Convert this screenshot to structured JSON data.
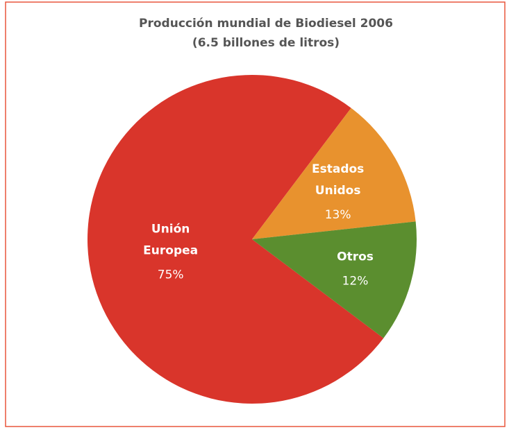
{
  "chart_data": {
    "type": "pie",
    "title": "Producción mundial de Biodiesel 2006",
    "subtitle": "(6.5 billones de litros)",
    "categories": [
      [
        "Unión",
        "Europea"
      ],
      [
        "Estados",
        "Unidos"
      ],
      [
        "Otros"
      ]
    ],
    "values": [
      75,
      13,
      12
    ],
    "value_labels": [
      "75%",
      "13%",
      "12%"
    ],
    "colors": [
      "#d9352b",
      "#e8922e",
      "#5b8e2f"
    ]
  }
}
